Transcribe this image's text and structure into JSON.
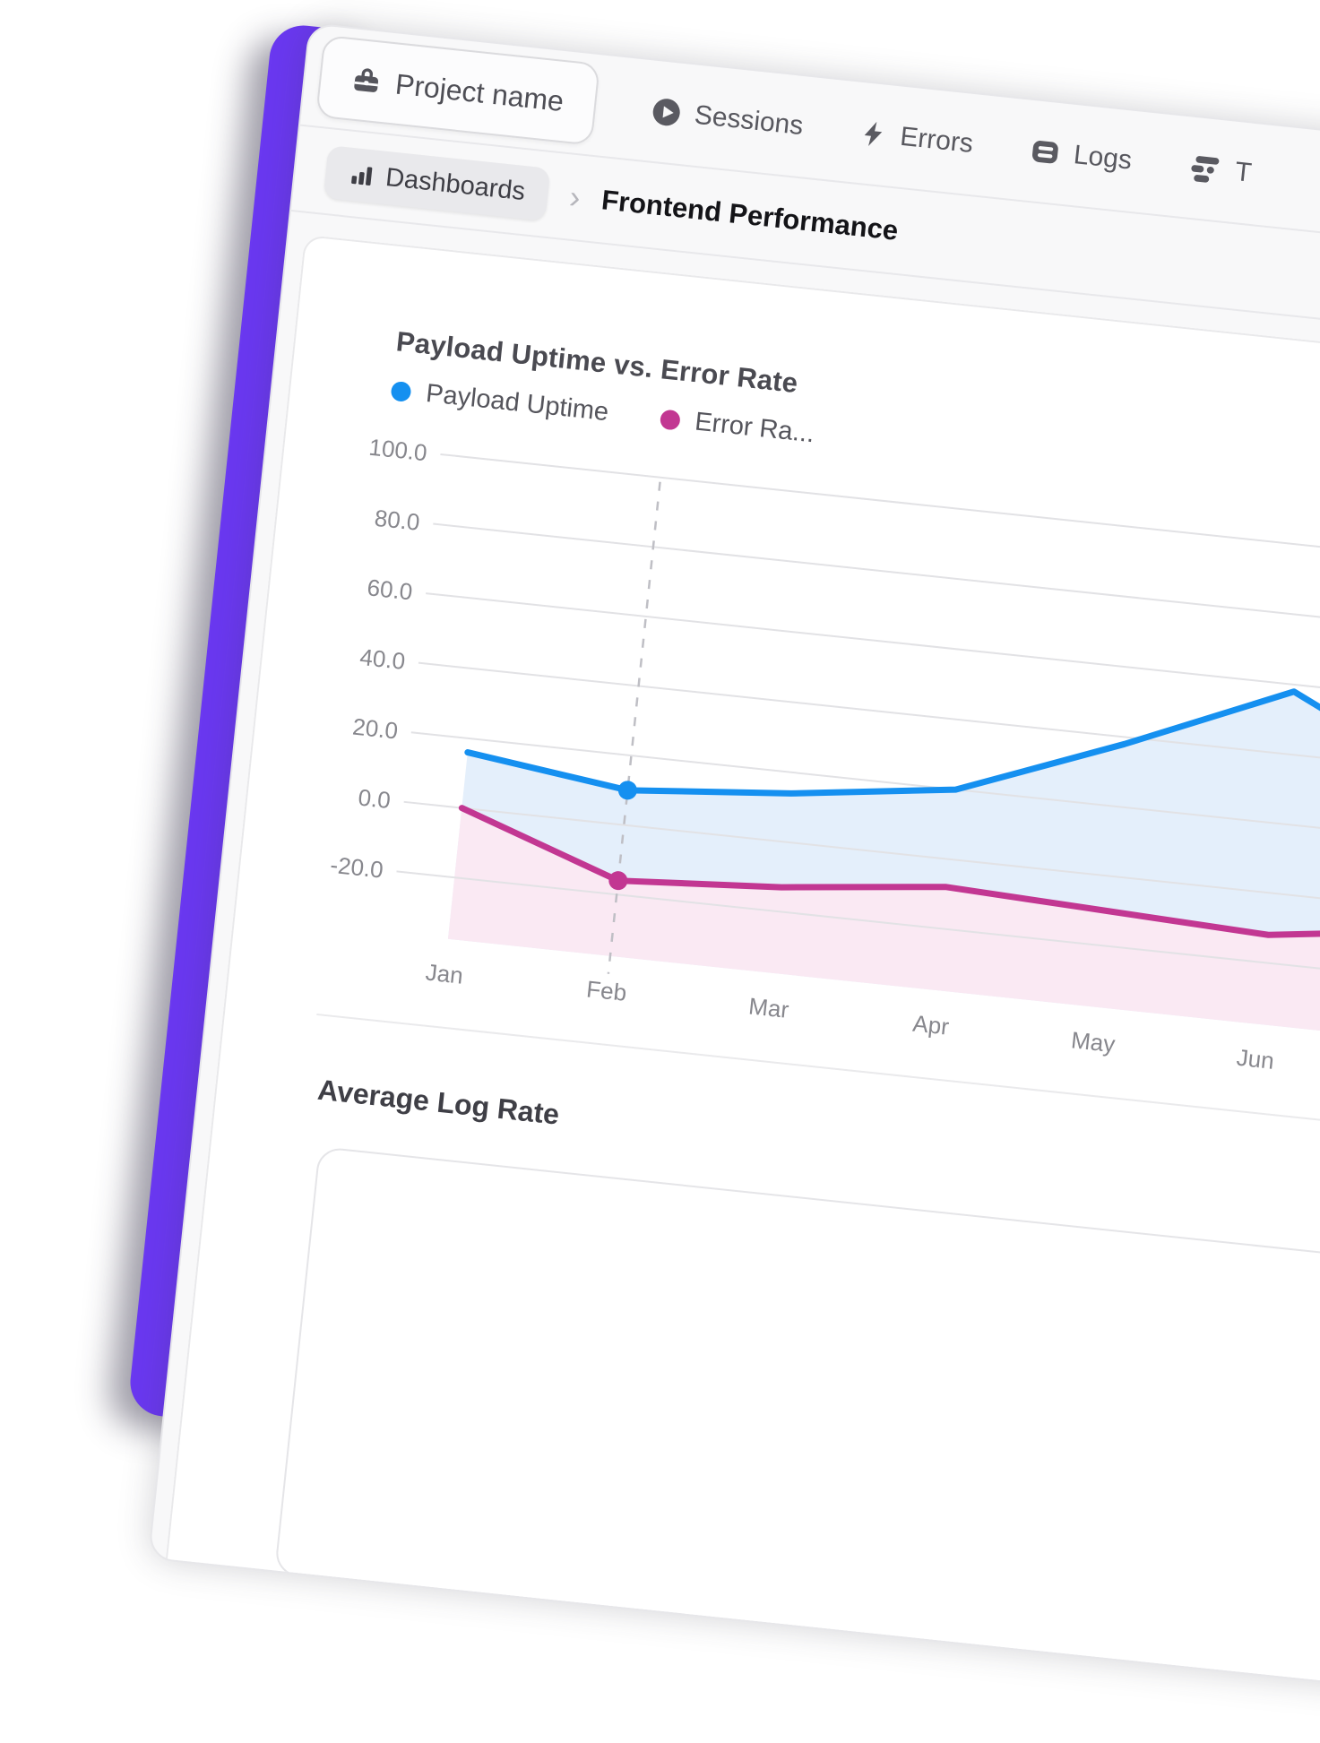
{
  "app": {
    "accent_color": "#6A38F0"
  },
  "nav": {
    "project_button": {
      "label": "Project name",
      "icon": "briefcase-icon"
    },
    "items": [
      {
        "label": "Sessions",
        "icon": "play-circle-icon"
      },
      {
        "label": "Errors",
        "icon": "lightning-icon"
      },
      {
        "label": "Logs",
        "icon": "logs-icon"
      },
      {
        "label": "T",
        "icon": "traces-icon",
        "clipped_by_viewport": true
      }
    ]
  },
  "breadcrumb": {
    "root_label": "Dashboards",
    "root_icon": "bar-chart-icon",
    "separator": "›",
    "current": "Frontend Performance"
  },
  "sections": {
    "second_chart_title": "Average Log Rate"
  },
  "chart_data": {
    "type": "line",
    "title": "Payload Uptime vs. Error Rate",
    "categories": [
      "Jan",
      "Feb",
      "Mar",
      "Apr",
      "May",
      "Jun"
    ],
    "yticks": [
      100,
      80,
      60,
      40,
      20,
      0,
      -20
    ],
    "ylim": [
      -28,
      105
    ],
    "grid": true,
    "legend_position": "top",
    "highlight_index": 1,
    "last_point_offscreen": true,
    "series": [
      {
        "name": "Payload Uptime",
        "legend_label": "Payload Uptime",
        "color": "#1590F0",
        "fill": "#E4EFFB",
        "values": [
          16,
          10,
          14,
          20,
          38,
          58,
          36
        ]
      },
      {
        "name": "Error Rate",
        "legend_label": "Error Ra...",
        "color": "#C23792",
        "fill": "#FAE9F3",
        "values": [
          0,
          -16,
          -13,
          -8,
          -10,
          -12,
          -6
        ]
      }
    ]
  }
}
